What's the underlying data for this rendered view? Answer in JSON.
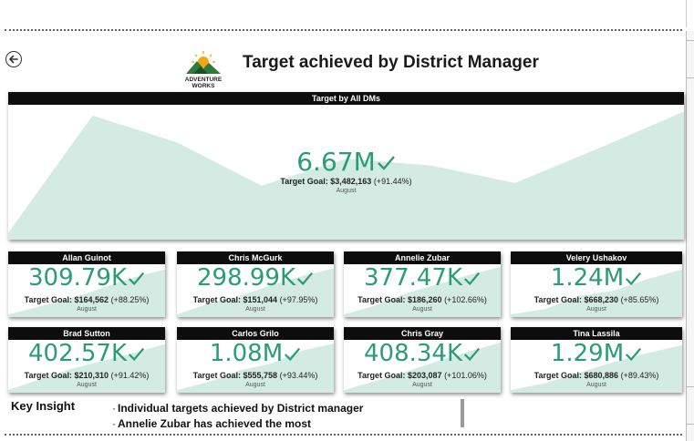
{
  "page": {
    "title": "Target achieved by District Manager"
  },
  "logo": {
    "line1": "ADVENTURE",
    "line2": "WORKS"
  },
  "colors": {
    "accent": "#2a9d74",
    "area_fill": "#d3ebe2",
    "header_bg": "#0d0d0d"
  },
  "summary": {
    "header": "Target by All DMs",
    "value": "6.67M",
    "goal_label": "Target Goal:",
    "goal_value": "$3,482,163",
    "goal_delta": "(+91.44%)",
    "month": "August",
    "trend": [
      0.05,
      0.92,
      0.72,
      0.4,
      0.6,
      0.55,
      0.42,
      0.68,
      0.95
    ]
  },
  "managers": [
    {
      "name": "Allan Guinot",
      "value": "309.79K",
      "goal_value": "$164,562",
      "goal_delta": "(+88.25%)",
      "month": "August",
      "trend": [
        0.05,
        0.2,
        0.35,
        0.55,
        0.75,
        0.9
      ]
    },
    {
      "name": "Chris McGurk",
      "value": "298.99K",
      "goal_value": "$151,044",
      "goal_delta": "(+97.95%)",
      "month": "August",
      "trend": [
        0.05,
        0.25,
        0.4,
        0.6,
        0.78,
        0.92
      ]
    },
    {
      "name": "Annelie Zubar",
      "value": "377.47K",
      "goal_value": "$186,260",
      "goal_delta": "(+102.66%)",
      "month": "August",
      "trend": [
        0.05,
        0.22,
        0.45,
        0.62,
        0.8,
        0.95
      ]
    },
    {
      "name": "Velery Ushakov",
      "value": "1.24M",
      "goal_value": "$668,230",
      "goal_delta": "(+85.65%)",
      "month": "August",
      "trend": [
        0.05,
        0.15,
        0.4,
        0.5,
        0.72,
        0.9
      ]
    },
    {
      "name": "Brad Sutton",
      "value": "402.57K",
      "goal_value": "$210,310",
      "goal_delta": "(+91.42%)",
      "month": "August",
      "trend": [
        0.05,
        0.25,
        0.45,
        0.6,
        0.75,
        0.92
      ]
    },
    {
      "name": "Carlos Grilo",
      "value": "1.08M",
      "goal_value": "$555,758",
      "goal_delta": "(+93.44%)",
      "month": "August",
      "trend": [
        0.05,
        0.2,
        0.42,
        0.55,
        0.8,
        0.93
      ]
    },
    {
      "name": "Chris Gray",
      "value": "408.34K",
      "goal_value": "$203,087",
      "goal_delta": "(+101.06%)",
      "month": "August",
      "trend": [
        0.05,
        0.22,
        0.4,
        0.6,
        0.78,
        0.95
      ]
    },
    {
      "name": "Tina Lassila",
      "value": "1.29M",
      "goal_value": "$680,886",
      "goal_delta": "(+89.43%)",
      "month": "August",
      "trend": [
        0.05,
        0.18,
        0.38,
        0.58,
        0.75,
        0.9
      ]
    }
  ],
  "insight": {
    "label": "Key Insight",
    "bullet": "·",
    "items": [
      "Individual targets achieved by District  manager",
      "Annelie Zubar has achieved the most"
    ]
  },
  "icons": {
    "back": "back-arrow-icon",
    "check": "checkmark-icon"
  }
}
